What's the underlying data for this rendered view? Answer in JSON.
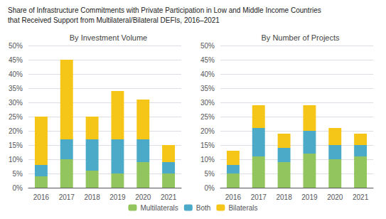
{
  "title": [
    "Share of Infrastructure Commitments with Private Participation in Low and Middle Income Countries",
    "that Received Support from Multilateral/Bilateral DEFIs, 2016–2021"
  ],
  "legend": "bottom",
  "chart_data": [
    {
      "type": "bar",
      "title": "By Investment Volume",
      "stacked": true,
      "grid": true,
      "categories": [
        "2016",
        "2017",
        "2018",
        "2019",
        "2020",
        "2021"
      ],
      "series": [
        {
          "name": "Multilaterals",
          "color": "#92C55E",
          "values": [
            4,
            10,
            6,
            5,
            9,
            5
          ]
        },
        {
          "name": "Both",
          "color": "#4BAAC8",
          "values": [
            4,
            7,
            11,
            12,
            8,
            4
          ]
        },
        {
          "name": "Bilaterals",
          "color": "#F5C518",
          "values": [
            17,
            28,
            8,
            17,
            14,
            6
          ]
        }
      ],
      "ylim": [
        0,
        50
      ],
      "yticks": [
        {
          "value": 0,
          "label": "0%"
        },
        {
          "value": 5,
          "label": "5%"
        },
        {
          "value": 10,
          "label": "10%"
        },
        {
          "value": 15,
          "label": "15%"
        },
        {
          "value": 20,
          "label": "20%"
        },
        {
          "value": 25,
          "label": "25%"
        },
        {
          "value": 30,
          "label": "30%"
        },
        {
          "value": 35,
          "label": "35%"
        },
        {
          "value": 40,
          "label": "40%"
        },
        {
          "value": 45,
          "label": "45%"
        },
        {
          "value": 50,
          "label": "50%"
        }
      ]
    },
    {
      "type": "bar",
      "title": "By Number of Projects",
      "stacked": true,
      "grid": true,
      "categories": [
        "2016",
        "2017",
        "2018",
        "2019",
        "2020",
        "2021"
      ],
      "series": [
        {
          "name": "Multilaterals",
          "color": "#92C55E",
          "values": [
            5,
            11,
            9,
            12,
            10,
            11
          ]
        },
        {
          "name": "Both",
          "color": "#4BAAC8",
          "values": [
            3,
            10,
            5,
            8,
            5,
            4
          ]
        },
        {
          "name": "Bilaterals",
          "color": "#F5C518",
          "values": [
            5,
            8,
            5,
            9,
            6,
            4
          ]
        }
      ],
      "ylim": [
        0,
        50
      ],
      "yticks": [
        {
          "value": 0,
          "label": "0%"
        },
        {
          "value": 5,
          "label": "5%"
        },
        {
          "value": 10,
          "label": "10%"
        },
        {
          "value": 15,
          "label": "15%"
        },
        {
          "value": 20,
          "label": "20%"
        },
        {
          "value": 25,
          "label": "25%"
        },
        {
          "value": 30,
          "label": "30%"
        },
        {
          "value": 35,
          "label": "35%"
        },
        {
          "value": 40,
          "label": "40%"
        },
        {
          "value": 45,
          "label": "45%"
        },
        {
          "value": 50,
          "label": "50%"
        }
      ]
    }
  ]
}
